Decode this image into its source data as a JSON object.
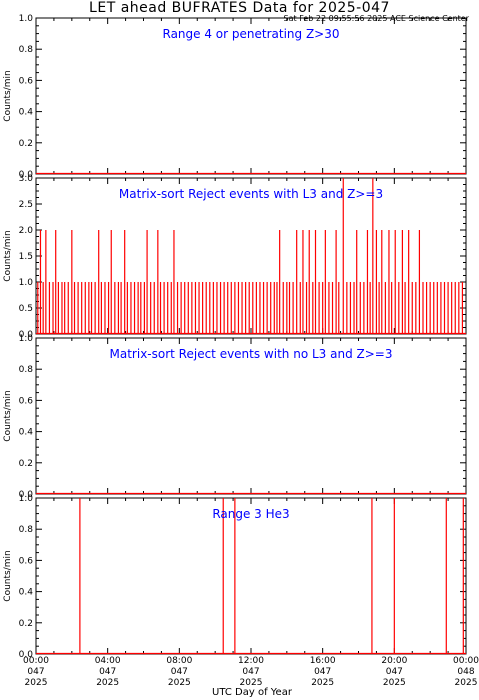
{
  "title": "LET ahead BUFRATES Data for 2025-047",
  "stamp": "Sat Feb 22 09:55:56 2025 ACE Science Center",
  "xlabel": "UTC Day of Year",
  "colors": {
    "data": "#ff0000",
    "label": "#0000ff",
    "axes": "#000000"
  },
  "chart_data": [
    {
      "type": "line",
      "title": "Range 4 or  penetrating Z>30",
      "ylabel": "Counts/min",
      "ylim": [
        0,
        1.0
      ],
      "yticks": [
        "0.0",
        "0.2",
        "0.4",
        "0.6",
        "0.8",
        "1.0"
      ],
      "xlim_hours": [
        0,
        24
      ],
      "spikes": []
    },
    {
      "type": "line",
      "title": "Matrix-sort Reject events with L3 and Z>=3",
      "ylabel": "Counts/min",
      "ylim": [
        0,
        3.0
      ],
      "yticks": [
        "0.0",
        "0.5",
        "1.0",
        "1.5",
        "2.0",
        "2.5",
        "3.0"
      ],
      "xlim_hours": [
        0,
        24
      ],
      "spikes": [
        {
          "t": 0.1,
          "v": 1
        },
        {
          "t": 0.25,
          "v": 2
        },
        {
          "t": 0.4,
          "v": 1
        },
        {
          "t": 0.55,
          "v": 2
        },
        {
          "t": 0.75,
          "v": 1
        },
        {
          "t": 0.95,
          "v": 1
        },
        {
          "t": 1.1,
          "v": 2
        },
        {
          "t": 1.25,
          "v": 1
        },
        {
          "t": 1.45,
          "v": 1
        },
        {
          "t": 1.6,
          "v": 1
        },
        {
          "t": 1.8,
          "v": 1
        },
        {
          "t": 2.0,
          "v": 2
        },
        {
          "t": 2.15,
          "v": 1
        },
        {
          "t": 2.35,
          "v": 1
        },
        {
          "t": 2.55,
          "v": 1
        },
        {
          "t": 2.75,
          "v": 1
        },
        {
          "t": 2.95,
          "v": 1
        },
        {
          "t": 3.1,
          "v": 1
        },
        {
          "t": 3.3,
          "v": 1
        },
        {
          "t": 3.5,
          "v": 2
        },
        {
          "t": 3.65,
          "v": 1
        },
        {
          "t": 3.85,
          "v": 1
        },
        {
          "t": 4.05,
          "v": 1
        },
        {
          "t": 4.2,
          "v": 2
        },
        {
          "t": 4.4,
          "v": 1
        },
        {
          "t": 4.6,
          "v": 1
        },
        {
          "t": 4.75,
          "v": 1
        },
        {
          "t": 4.95,
          "v": 2
        },
        {
          "t": 5.1,
          "v": 1
        },
        {
          "t": 5.3,
          "v": 1
        },
        {
          "t": 5.5,
          "v": 1
        },
        {
          "t": 5.7,
          "v": 1
        },
        {
          "t": 5.85,
          "v": 1
        },
        {
          "t": 6.05,
          "v": 1
        },
        {
          "t": 6.2,
          "v": 2
        },
        {
          "t": 6.4,
          "v": 1
        },
        {
          "t": 6.6,
          "v": 1
        },
        {
          "t": 6.8,
          "v": 2
        },
        {
          "t": 6.95,
          "v": 1
        },
        {
          "t": 7.15,
          "v": 1
        },
        {
          "t": 7.35,
          "v": 1
        },
        {
          "t": 7.55,
          "v": 1
        },
        {
          "t": 7.7,
          "v": 2
        },
        {
          "t": 7.9,
          "v": 1
        },
        {
          "t": 8.1,
          "v": 1
        },
        {
          "t": 8.3,
          "v": 1
        },
        {
          "t": 8.5,
          "v": 1
        },
        {
          "t": 8.7,
          "v": 1
        },
        {
          "t": 8.9,
          "v": 1
        },
        {
          "t": 9.1,
          "v": 1
        },
        {
          "t": 9.3,
          "v": 1
        },
        {
          "t": 9.5,
          "v": 1
        },
        {
          "t": 9.7,
          "v": 1
        },
        {
          "t": 9.9,
          "v": 1
        },
        {
          "t": 10.1,
          "v": 1
        },
        {
          "t": 10.3,
          "v": 1
        },
        {
          "t": 10.5,
          "v": 1
        },
        {
          "t": 10.7,
          "v": 1
        },
        {
          "t": 10.9,
          "v": 1
        },
        {
          "t": 11.1,
          "v": 1
        },
        {
          "t": 11.3,
          "v": 1
        },
        {
          "t": 11.5,
          "v": 1
        },
        {
          "t": 11.7,
          "v": 1
        },
        {
          "t": 11.9,
          "v": 1
        },
        {
          "t": 12.1,
          "v": 1
        },
        {
          "t": 12.3,
          "v": 1
        },
        {
          "t": 12.5,
          "v": 1
        },
        {
          "t": 12.7,
          "v": 1
        },
        {
          "t": 12.9,
          "v": 1
        },
        {
          "t": 13.1,
          "v": 1
        },
        {
          "t": 13.3,
          "v": 1
        },
        {
          "t": 13.45,
          "v": 1
        },
        {
          "t": 13.6,
          "v": 2
        },
        {
          "t": 13.8,
          "v": 1
        },
        {
          "t": 14.0,
          "v": 1
        },
        {
          "t": 14.15,
          "v": 1
        },
        {
          "t": 14.35,
          "v": 1
        },
        {
          "t": 14.55,
          "v": 2
        },
        {
          "t": 14.75,
          "v": 1
        },
        {
          "t": 14.9,
          "v": 2
        },
        {
          "t": 15.1,
          "v": 1
        },
        {
          "t": 15.25,
          "v": 2
        },
        {
          "t": 15.45,
          "v": 1
        },
        {
          "t": 15.6,
          "v": 2
        },
        {
          "t": 15.8,
          "v": 1
        },
        {
          "t": 16.0,
          "v": 1
        },
        {
          "t": 16.15,
          "v": 2
        },
        {
          "t": 16.35,
          "v": 1
        },
        {
          "t": 16.55,
          "v": 1
        },
        {
          "t": 16.75,
          "v": 2
        },
        {
          "t": 16.9,
          "v": 1
        },
        {
          "t": 17.15,
          "v": 3
        },
        {
          "t": 17.35,
          "v": 1
        },
        {
          "t": 17.55,
          "v": 1
        },
        {
          "t": 17.75,
          "v": 1
        },
        {
          "t": 17.9,
          "v": 2
        },
        {
          "t": 18.1,
          "v": 1
        },
        {
          "t": 18.3,
          "v": 1
        },
        {
          "t": 18.5,
          "v": 2
        },
        {
          "t": 18.65,
          "v": 1
        },
        {
          "t": 18.8,
          "v": 3
        },
        {
          "t": 19.0,
          "v": 2
        },
        {
          "t": 19.15,
          "v": 1
        },
        {
          "t": 19.3,
          "v": 2
        },
        {
          "t": 19.5,
          "v": 1
        },
        {
          "t": 19.7,
          "v": 2
        },
        {
          "t": 19.85,
          "v": 1
        },
        {
          "t": 20.05,
          "v": 2
        },
        {
          "t": 20.25,
          "v": 1
        },
        {
          "t": 20.45,
          "v": 2
        },
        {
          "t": 20.6,
          "v": 1
        },
        {
          "t": 20.8,
          "v": 2
        },
        {
          "t": 21.0,
          "v": 1
        },
        {
          "t": 21.2,
          "v": 1
        },
        {
          "t": 21.4,
          "v": 2
        },
        {
          "t": 21.6,
          "v": 1
        },
        {
          "t": 21.8,
          "v": 1
        },
        {
          "t": 22.0,
          "v": 1
        },
        {
          "t": 22.2,
          "v": 1
        },
        {
          "t": 22.4,
          "v": 1
        },
        {
          "t": 22.6,
          "v": 1
        },
        {
          "t": 22.8,
          "v": 1
        },
        {
          "t": 23.0,
          "v": 1
        },
        {
          "t": 23.2,
          "v": 1
        },
        {
          "t": 23.4,
          "v": 1
        },
        {
          "t": 23.6,
          "v": 1
        },
        {
          "t": 23.8,
          "v": 1
        }
      ]
    },
    {
      "type": "line",
      "title": "Matrix-sort Reject events with no L3 and Z>=3",
      "ylabel": "Counts/min",
      "ylim": [
        0,
        1.0
      ],
      "yticks": [
        "0.0",
        "0.2",
        "0.4",
        "0.6",
        "0.8",
        "1.0"
      ],
      "xlim_hours": [
        0,
        24
      ],
      "spikes": []
    },
    {
      "type": "line",
      "title": "Range 3 He3",
      "ylabel": "Counts/min",
      "ylim": [
        0,
        1.0
      ],
      "yticks": [
        "0.0",
        "0.2",
        "0.4",
        "0.6",
        "0.8",
        "1.0"
      ],
      "xlim_hours": [
        0,
        24
      ],
      "spikes": [
        {
          "t": 2.45,
          "v": 1
        },
        {
          "t": 10.45,
          "v": 1
        },
        {
          "t": 11.1,
          "v": 1
        },
        {
          "t": 18.75,
          "v": 1
        },
        {
          "t": 20.0,
          "v": 1
        },
        {
          "t": 22.9,
          "v": 1
        },
        {
          "t": 23.85,
          "v": 1
        }
      ]
    }
  ],
  "xticks": [
    {
      "h": 0,
      "lines": [
        "00:00",
        "047",
        "2025"
      ]
    },
    {
      "h": 4,
      "lines": [
        "04:00",
        "047",
        "2025"
      ]
    },
    {
      "h": 8,
      "lines": [
        "08:00",
        "047",
        "2025"
      ]
    },
    {
      "h": 12,
      "lines": [
        "12:00",
        "047",
        "2025"
      ]
    },
    {
      "h": 16,
      "lines": [
        "16:00",
        "047",
        "2025"
      ]
    },
    {
      "h": 20,
      "lines": [
        "20:00",
        "047",
        "2025"
      ]
    },
    {
      "h": 24,
      "lines": [
        "00:00",
        "048",
        "2025"
      ]
    }
  ]
}
